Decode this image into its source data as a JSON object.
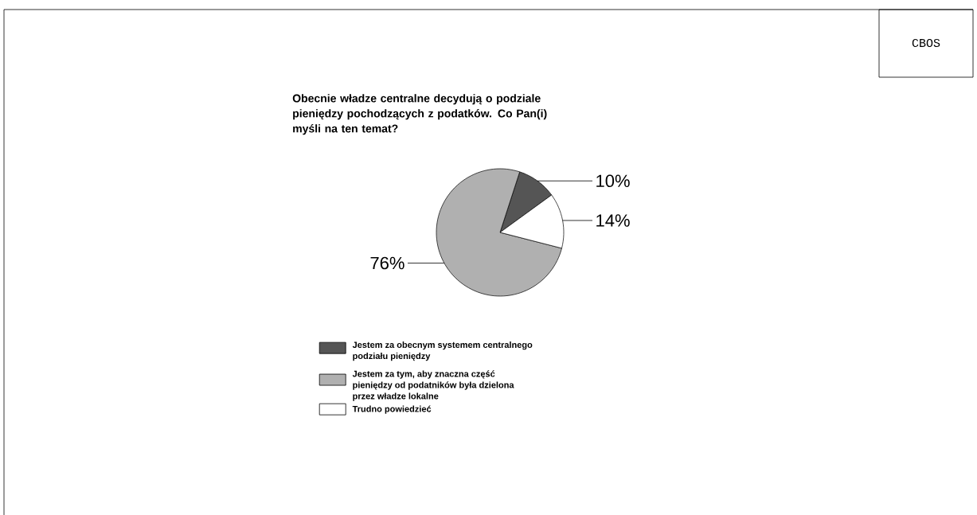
{
  "chart_data": {
    "type": "pie",
    "title": "Obecnie władze centralne decydują o podziale pieniędzy pochodzących z podatków. Co Pan(i) myśli na ten temat?",
    "categories": [
      "Jestem za obecnym systemem centralnego podziału pieniędzy",
      "Jestem za tym, aby znaczna część pieniędzy od podatników była dzielona przez władze lokalne",
      "Trudno powiedzieć"
    ],
    "values": [
      10,
      76,
      14
    ],
    "colors": [
      "#555555",
      "#b0b0b0",
      "#ffffff"
    ],
    "value_labels": [
      "10%",
      "76%",
      "14%"
    ],
    "legend": "bottom",
    "annotations": [
      "CBOS"
    ]
  }
}
